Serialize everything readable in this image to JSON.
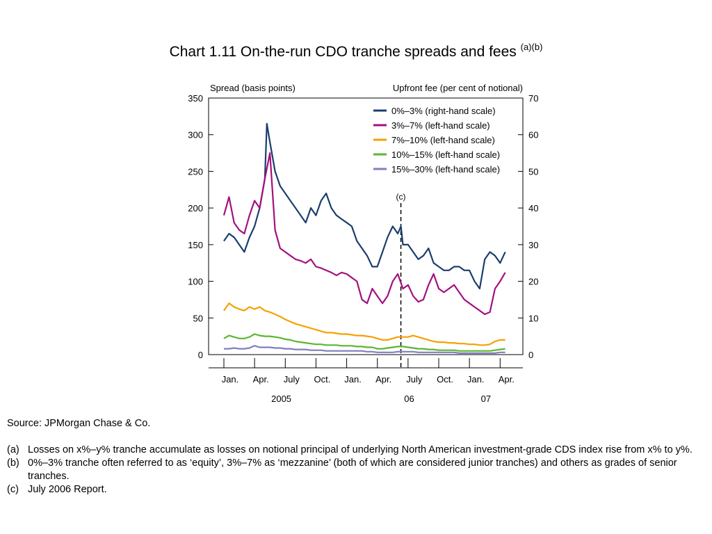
{
  "title": {
    "main": "Chart 1.11  On-the-run CDO tranche spreads and fees",
    "superscript": "(a)(b)"
  },
  "chart_data": {
    "type": "line",
    "left_axis": {
      "label": "Spread (basis points)",
      "range": [
        0,
        350
      ],
      "ticks": [
        0,
        50,
        100,
        150,
        200,
        250,
        300,
        350
      ]
    },
    "right_axis": {
      "label": "Upfront fee (per cent of notional)",
      "range": [
        0,
        70
      ],
      "ticks": [
        0,
        10,
        20,
        30,
        40,
        50,
        60,
        70
      ]
    },
    "x_range": [
      0,
      28
    ],
    "x_ticks": [
      {
        "x": 0,
        "label": "Jan."
      },
      {
        "x": 3,
        "label": "Apr."
      },
      {
        "x": 6,
        "label": "July"
      },
      {
        "x": 9,
        "label": "Oct."
      },
      {
        "x": 12,
        "label": "Jan."
      },
      {
        "x": 15,
        "label": "Apr."
      },
      {
        "x": 18,
        "label": "July"
      },
      {
        "x": 21,
        "label": "Oct."
      },
      {
        "x": 24,
        "label": "Jan."
      },
      {
        "x": 27,
        "label": "Apr."
      }
    ],
    "year_labels": [
      {
        "x": 5,
        "label": "2005"
      },
      {
        "x": 17.5,
        "label": "06"
      },
      {
        "x": 25,
        "label": "07"
      }
    ],
    "annotation": {
      "x": 17.3,
      "label": "(c)"
    },
    "series": [
      {
        "name": "0%–3% (right-hand scale)",
        "axis": "right",
        "color": "#1b3d6e",
        "x": [
          0,
          0.5,
          1,
          1.5,
          2,
          2.5,
          3,
          3.5,
          4,
          4.2,
          4.5,
          5,
          5.5,
          6,
          6.5,
          7,
          7.5,
          8,
          8.5,
          9,
          9.5,
          10,
          10.5,
          11,
          11.5,
          12,
          12.5,
          13,
          13.5,
          14,
          14.5,
          15,
          15.5,
          16,
          16.5,
          17,
          17.3,
          17.5,
          18,
          18.5,
          19,
          19.5,
          20,
          20.5,
          21,
          21.5,
          22,
          22.5,
          23,
          23.5,
          24,
          24.5,
          25,
          25.5,
          26,
          26.5,
          27,
          27.5
        ],
        "y": [
          31,
          33,
          32,
          30,
          28,
          32,
          35,
          40,
          48,
          63,
          58,
          50,
          46,
          44,
          42,
          40,
          38,
          36,
          40,
          38,
          42,
          44,
          40,
          38,
          37,
          36,
          35,
          31,
          29,
          27,
          24,
          24,
          28,
          32,
          35,
          33,
          35,
          30,
          30,
          28,
          26,
          27,
          29,
          25,
          24,
          23,
          23,
          24,
          24,
          23,
          23,
          20,
          18,
          26,
          28,
          27,
          25,
          28
        ]
      },
      {
        "name": "3%–7% (left-hand scale)",
        "axis": "left",
        "color": "#a3107f",
        "x": [
          0,
          0.5,
          1,
          1.5,
          2,
          2.5,
          3,
          3.5,
          4,
          4.5,
          5,
          5.5,
          6,
          6.5,
          7,
          7.5,
          8,
          8.5,
          9,
          9.5,
          10,
          10.5,
          11,
          11.5,
          12,
          12.5,
          13,
          13.5,
          14,
          14.5,
          15,
          15.5,
          16,
          16.5,
          17,
          17.5,
          18,
          18.5,
          19,
          19.5,
          20,
          20.5,
          21,
          21.5,
          22,
          22.5,
          23,
          23.5,
          24,
          24.5,
          25,
          25.5,
          26,
          26.5,
          27,
          27.5
        ],
        "y": [
          190,
          215,
          180,
          170,
          165,
          190,
          210,
          200,
          240,
          275,
          170,
          145,
          140,
          135,
          130,
          128,
          125,
          130,
          120,
          118,
          115,
          112,
          108,
          112,
          110,
          105,
          100,
          75,
          70,
          90,
          80,
          70,
          80,
          100,
          110,
          90,
          95,
          80,
          72,
          75,
          95,
          110,
          90,
          85,
          90,
          95,
          85,
          75,
          70,
          65,
          60,
          55,
          58,
          90,
          100,
          112
        ]
      },
      {
        "name": "7%–10% (left-hand scale)",
        "axis": "left",
        "color": "#f5a100",
        "x": [
          0,
          0.5,
          1,
          1.5,
          2,
          2.5,
          3,
          3.5,
          4,
          4.5,
          5,
          5.5,
          6,
          6.5,
          7,
          7.5,
          8,
          8.5,
          9,
          9.5,
          10,
          10.5,
          11,
          11.5,
          12,
          12.5,
          13,
          13.5,
          14,
          14.5,
          15,
          15.5,
          16,
          16.5,
          17,
          17.5,
          18,
          18.5,
          19,
          19.5,
          20,
          20.5,
          21,
          21.5,
          22,
          22.5,
          23,
          23.5,
          24,
          24.5,
          25,
          25.5,
          26,
          26.5,
          27,
          27.5
        ],
        "y": [
          60,
          70,
          65,
          62,
          60,
          65,
          62,
          65,
          60,
          58,
          55,
          52,
          48,
          45,
          42,
          40,
          38,
          36,
          34,
          32,
          30,
          30,
          29,
          28,
          28,
          27,
          26,
          26,
          25,
          24,
          22,
          20,
          20,
          22,
          24,
          24,
          24,
          26,
          24,
          22,
          20,
          18,
          17,
          17,
          16,
          16,
          15,
          15,
          14,
          14,
          13,
          13,
          14,
          18,
          20,
          20
        ]
      },
      {
        "name": "10%–15% (left-hand scale)",
        "axis": "left",
        "color": "#5bb531",
        "x": [
          0,
          0.5,
          1,
          1.5,
          2,
          2.5,
          3,
          3.5,
          4,
          4.5,
          5,
          5.5,
          6,
          6.5,
          7,
          7.5,
          8,
          8.5,
          9,
          9.5,
          10,
          10.5,
          11,
          11.5,
          12,
          12.5,
          13,
          13.5,
          14,
          14.5,
          15,
          15.5,
          16,
          16.5,
          17,
          17.5,
          18,
          18.5,
          19,
          19.5,
          20,
          20.5,
          21,
          21.5,
          22,
          22.5,
          23,
          23.5,
          24,
          24.5,
          25,
          25.5,
          26,
          26.5,
          27,
          27.5
        ],
        "y": [
          22,
          26,
          24,
          22,
          22,
          24,
          28,
          26,
          25,
          25,
          24,
          23,
          21,
          20,
          18,
          17,
          16,
          15,
          14,
          14,
          13,
          13,
          13,
          12,
          12,
          12,
          11,
          11,
          10,
          10,
          8,
          8,
          9,
          10,
          11,
          11,
          10,
          9,
          8,
          8,
          7,
          7,
          6,
          6,
          6,
          6,
          5,
          5,
          5,
          5,
          5,
          5,
          5,
          6,
          7,
          8
        ]
      },
      {
        "name": "15%–30% (left-hand scale)",
        "axis": "left",
        "color": "#7f7fbd",
        "x": [
          0,
          0.5,
          1,
          1.5,
          2,
          2.5,
          3,
          3.5,
          4,
          4.5,
          5,
          5.5,
          6,
          6.5,
          7,
          7.5,
          8,
          8.5,
          9,
          9.5,
          10,
          10.5,
          11,
          11.5,
          12,
          12.5,
          13,
          13.5,
          14,
          14.5,
          15,
          15.5,
          16,
          16.5,
          17,
          17.5,
          18,
          18.5,
          19,
          19.5,
          20,
          20.5,
          21,
          21.5,
          22,
          22.5,
          23,
          23.5,
          24,
          24.5,
          25,
          25.5,
          26,
          26.5,
          27,
          27.5
        ],
        "y": [
          8,
          8,
          9,
          8,
          8,
          9,
          12,
          10,
          10,
          10,
          9,
          9,
          8,
          8,
          7,
          7,
          7,
          6,
          6,
          6,
          5,
          5,
          5,
          5,
          5,
          5,
          5,
          5,
          4,
          4,
          3,
          3,
          3,
          3,
          4,
          4,
          4,
          4,
          3,
          3,
          3,
          3,
          3,
          3,
          3,
          3,
          2,
          2,
          2,
          2,
          2,
          2,
          2,
          2,
          3,
          3
        ]
      }
    ]
  },
  "notes": {
    "source": "Source:  JPMorgan Chase & Co.",
    "items": [
      {
        "label": "(a)",
        "text": "Losses on x%–y% tranche accumulate as losses on notional principal of underlying North American investment-grade CDS index rise from x% to y%."
      },
      {
        "label": "(b)",
        "text": "0%–3% tranche often referred to as ‘equity’, 3%–7% as ‘mezzanine’ (both of which are considered junior tranches) and others as grades of senior tranches."
      },
      {
        "label": "(c)",
        "text": "July 2006 Report."
      }
    ]
  }
}
